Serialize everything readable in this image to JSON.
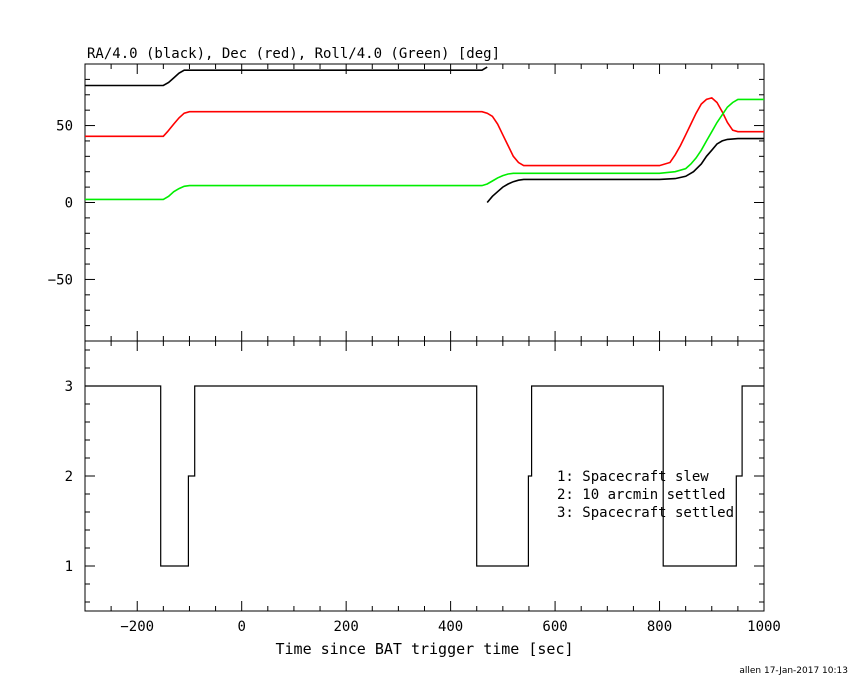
{
  "footer": {
    "stamp": "allen 17-Jan-2017 10:13"
  },
  "chart_data": [
    {
      "type": "line",
      "title": "RA/4.0 (black), Dec (red), Roll/4.0 (Green) [deg]",
      "xlim": [
        -300,
        1000
      ],
      "ylim": [
        -90,
        90
      ],
      "yticks": [
        -50,
        0,
        50
      ],
      "ytick_labels": [
        "−50",
        "0",
        "50"
      ],
      "grid": false,
      "series": [
        {
          "name": "RA/4.0",
          "color": "#000000",
          "segments": [
            [
              [
                -300,
                76
              ],
              [
                -150,
                76
              ],
              [
                -140,
                78
              ],
              [
                -130,
                81
              ],
              [
                -120,
                84
              ],
              [
                -110,
                86
              ],
              [
                -95,
                86
              ],
              [
                0,
                86
              ],
              [
                200,
                86
              ],
              [
                400,
                86
              ],
              [
                460,
                86
              ],
              [
                470,
                88
              ]
            ],
            [
              [
                470,
                0
              ],
              [
                480,
                4
              ],
              [
                490,
                7
              ],
              [
                500,
                10
              ],
              [
                510,
                12
              ],
              [
                520,
                13.5
              ],
              [
                530,
                14.5
              ],
              [
                540,
                15
              ],
              [
                550,
                15
              ],
              [
                700,
                15
              ],
              [
                800,
                15
              ],
              [
                830,
                15.5
              ],
              [
                850,
                17
              ],
              [
                865,
                20
              ],
              [
                880,
                25
              ],
              [
                890,
                30
              ],
              [
                900,
                34
              ],
              [
                910,
                38
              ],
              [
                920,
                40
              ],
              [
                930,
                41
              ],
              [
                950,
                41.5
              ],
              [
                1000,
                41.5
              ]
            ]
          ]
        },
        {
          "name": "Dec",
          "color": "#ff0000",
          "segments": [
            [
              [
                -300,
                43
              ],
              [
                -150,
                43
              ],
              [
                -142,
                46
              ],
              [
                -130,
                51
              ],
              [
                -120,
                55
              ],
              [
                -110,
                58
              ],
              [
                -100,
                59
              ],
              [
                0,
                59
              ],
              [
                200,
                59
              ],
              [
                400,
                59
              ],
              [
                460,
                59
              ],
              [
                470,
                58
              ],
              [
                480,
                56
              ],
              [
                490,
                51
              ],
              [
                500,
                44
              ],
              [
                510,
                37
              ],
              [
                520,
                30
              ],
              [
                530,
                26
              ],
              [
                540,
                24
              ],
              [
                560,
                24
              ],
              [
                700,
                24
              ],
              [
                800,
                24
              ],
              [
                820,
                26
              ],
              [
                830,
                31
              ],
              [
                840,
                37
              ],
              [
                850,
                44
              ],
              [
                860,
                51
              ],
              [
                870,
                58
              ],
              [
                880,
                64
              ],
              [
                890,
                67
              ],
              [
                900,
                68
              ],
              [
                910,
                65
              ],
              [
                920,
                59
              ],
              [
                930,
                52
              ],
              [
                940,
                47
              ],
              [
                950,
                46
              ],
              [
                1000,
                46
              ]
            ]
          ]
        },
        {
          "name": "Roll/4.0",
          "color": "#00ee00",
          "segments": [
            [
              [
                -300,
                2
              ],
              [
                -150,
                2
              ],
              [
                -140,
                4
              ],
              [
                -130,
                7
              ],
              [
                -120,
                9
              ],
              [
                -110,
                10.5
              ],
              [
                -100,
                11
              ],
              [
                0,
                11
              ],
              [
                200,
                11
              ],
              [
                400,
                11
              ],
              [
                460,
                11
              ],
              [
                470,
                12
              ],
              [
                480,
                14
              ],
              [
                490,
                16
              ],
              [
                500,
                17.5
              ],
              [
                510,
                18.5
              ],
              [
                520,
                19
              ],
              [
                550,
                19
              ],
              [
                700,
                19
              ],
              [
                800,
                19
              ],
              [
                830,
                20
              ],
              [
                850,
                22
              ],
              [
                860,
                25
              ],
              [
                870,
                29
              ],
              [
                880,
                34
              ],
              [
                890,
                40
              ],
              [
                900,
                46
              ],
              [
                910,
                52
              ],
              [
                920,
                57
              ],
              [
                930,
                62
              ],
              [
                940,
                65
              ],
              [
                950,
                67
              ],
              [
                1000,
                67
              ]
            ]
          ]
        }
      ]
    },
    {
      "type": "line",
      "xlabel": "Time since BAT trigger time [sec]",
      "xlim": [
        -300,
        1000
      ],
      "ylim": [
        0.5,
        3.5
      ],
      "xticks": [
        -200,
        0,
        200,
        400,
        600,
        800,
        1000
      ],
      "xtick_labels": [
        "−200",
        "0",
        "200",
        "400",
        "600",
        "800",
        "1000"
      ],
      "yticks": [
        1,
        2,
        3
      ],
      "ytick_labels": [
        "1",
        "2",
        "3"
      ],
      "grid": false,
      "legend_lines": [
        "1: Spacecraft slew",
        "2: 10 arcmin settled",
        "3: Spacecraft settled"
      ],
      "series": [
        {
          "color": "#000000",
          "points": [
            [
              -300,
              3
            ],
            [
              -155,
              3
            ],
            [
              -155,
              1
            ],
            [
              -102,
              1
            ],
            [
              -102,
              2
            ],
            [
              -90,
              2
            ],
            [
              -90,
              3
            ],
            [
              450,
              3
            ],
            [
              450,
              1
            ],
            [
              549,
              1
            ],
            [
              549,
              2
            ],
            [
              555,
              2
            ],
            [
              555,
              3
            ],
            [
              807,
              3
            ],
            [
              807,
              1
            ],
            [
              947,
              1
            ],
            [
              947,
              2
            ],
            [
              958,
              2
            ],
            [
              958,
              3
            ],
            [
              1000,
              3
            ]
          ]
        }
      ]
    }
  ]
}
